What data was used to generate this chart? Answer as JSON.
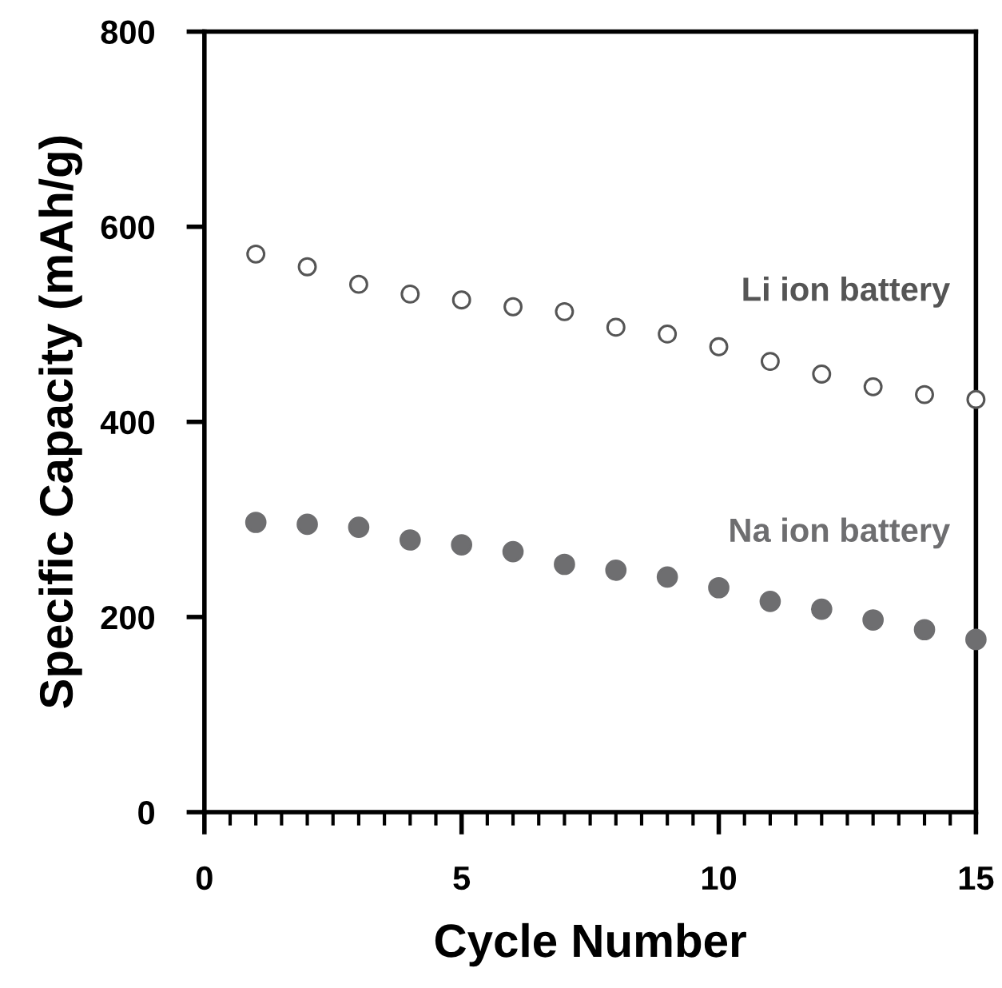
{
  "chart_data": {
    "type": "scatter",
    "xlabel": "Cycle Number",
    "ylabel": "Specific Capacity (mAh/g)",
    "xlim": [
      0,
      15
    ],
    "xticks": [
      0,
      5,
      10,
      15
    ],
    "ylim": [
      0,
      800
    ],
    "yticks": [
      0,
      200,
      400,
      600,
      800
    ],
    "grid": false,
    "legend": false,
    "marker": "circle",
    "series": [
      {
        "name": "Li ion battery",
        "color": "#555555",
        "x": [
          1,
          2,
          3,
          4,
          5,
          6,
          7,
          8,
          9,
          10,
          11,
          12,
          13,
          14,
          15
        ],
        "values": [
          572,
          559,
          541,
          531,
          525,
          518,
          513,
          497,
          490,
          477,
          462,
          449,
          436,
          428,
          423
        ]
      },
      {
        "name": "Na ion battery",
        "color": "#6e6e70",
        "x": [
          1,
          2,
          3,
          4,
          5,
          6,
          7,
          8,
          9,
          10,
          11,
          12,
          13,
          14,
          15
        ],
        "values": [
          297,
          295,
          292,
          279,
          274,
          267,
          254,
          248,
          241,
          230,
          216,
          208,
          197,
          187,
          177
        ]
      }
    ]
  }
}
